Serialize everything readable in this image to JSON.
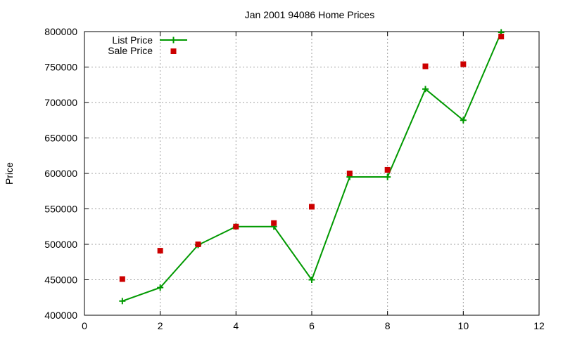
{
  "chart_data": {
    "type": "line",
    "title": "Jan 2001 94086 Home Prices",
    "xlabel": "",
    "ylabel": "Price",
    "xlim": [
      0,
      12
    ],
    "ylim": [
      400000,
      800000
    ],
    "x_ticks": [
      0,
      2,
      4,
      6,
      8,
      10,
      12
    ],
    "y_ticks": [
      400000,
      450000,
      500000,
      550000,
      600000,
      650000,
      700000,
      750000,
      800000
    ],
    "grid": true,
    "legend_position": "top-left",
    "series": [
      {
        "name": "List Price",
        "style": "line+cross",
        "color": "#009900",
        "points": [
          [
            1,
            420000
          ],
          [
            2,
            439000
          ],
          [
            3,
            499000
          ],
          [
            4,
            525000
          ],
          [
            5,
            525000
          ],
          [
            6,
            450000
          ],
          [
            7,
            595000
          ],
          [
            8,
            595000
          ],
          [
            9,
            719000
          ],
          [
            10,
            675000
          ],
          [
            11,
            799000
          ]
        ]
      },
      {
        "name": "Sale Price",
        "style": "square",
        "color": "#cc0000",
        "points": [
          [
            1,
            451000
          ],
          [
            2,
            491000
          ],
          [
            3,
            500000
          ],
          [
            4,
            525000
          ],
          [
            5,
            530000
          ],
          [
            6,
            553000
          ],
          [
            7,
            600000
          ],
          [
            8,
            605000
          ],
          [
            9,
            751000
          ],
          [
            10,
            754000
          ],
          [
            11,
            793000
          ]
        ]
      }
    ]
  }
}
